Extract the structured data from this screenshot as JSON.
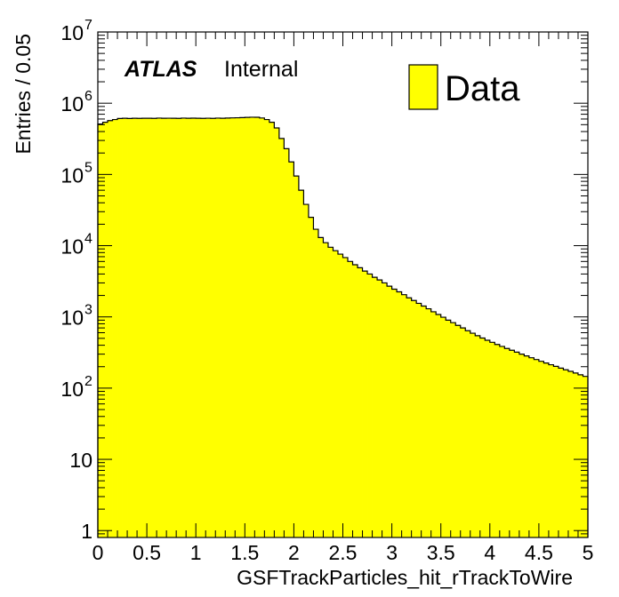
{
  "chart_data": {
    "type": "histogram",
    "title": "",
    "xlabel": "GSFTrackParticles_hit_rTrackToWire",
    "ylabel": "Entries / 0.05",
    "xlim": [
      0,
      5
    ],
    "ylim": [
      0.8,
      10000000
    ],
    "yscale": "log",
    "bin_width": 0.05,
    "x_ticks": [
      "0",
      "0.5",
      "1",
      "1.5",
      "2",
      "2.5",
      "3",
      "3.5",
      "4",
      "4.5",
      "5"
    ],
    "y_ticks": [
      {
        "value": 1,
        "base": "1",
        "exp": ""
      },
      {
        "value": 10,
        "base": "10",
        "exp": ""
      },
      {
        "value": 100,
        "base": "10",
        "exp": "2"
      },
      {
        "value": 1000,
        "base": "10",
        "exp": "3"
      },
      {
        "value": 10000,
        "base": "10",
        "exp": "4"
      },
      {
        "value": 100000,
        "base": "10",
        "exp": "5"
      },
      {
        "value": 1000000,
        "base": "10",
        "exp": "6"
      },
      {
        "value": 10000000,
        "base": "10",
        "exp": "7"
      }
    ],
    "fill_color": "#ffff00",
    "line_color": "#000000",
    "legend": {
      "placement": "top-right",
      "entries": [
        {
          "label": "Data"
        }
      ]
    },
    "annotation": {
      "bold": "ATLAS",
      "normal": "Internal"
    },
    "series": [
      {
        "name": "Data",
        "values": [
          510000,
          540000,
          570000,
          590000,
          610000,
          615000,
          610000,
          615000,
          612000,
          615000,
          615000,
          613000,
          618000,
          614000,
          616000,
          615000,
          613000,
          618000,
          614000,
          617000,
          615000,
          612000,
          616000,
          613000,
          618000,
          614000,
          619000,
          622000,
          625000,
          628000,
          632000,
          636000,
          635000,
          620000,
          590000,
          540000,
          450000,
          320000,
          230000,
          150000,
          95000,
          60000,
          38000,
          25000,
          17000,
          13000,
          11000,
          9500,
          8500,
          7600,
          6800,
          6000,
          5400,
          4900,
          4400,
          4000,
          3600,
          3300,
          3000,
          2700,
          2450,
          2250,
          2050,
          1850,
          1700,
          1550,
          1420,
          1300,
          1180,
          1080,
          990,
          900,
          830,
          760,
          700,
          640,
          590,
          545,
          505,
          470,
          440,
          410,
          385,
          360,
          340,
          320,
          300,
          283,
          267,
          252,
          238,
          225,
          213,
          202,
          191,
          181,
          172,
          163,
          154,
          146
        ]
      }
    ]
  }
}
